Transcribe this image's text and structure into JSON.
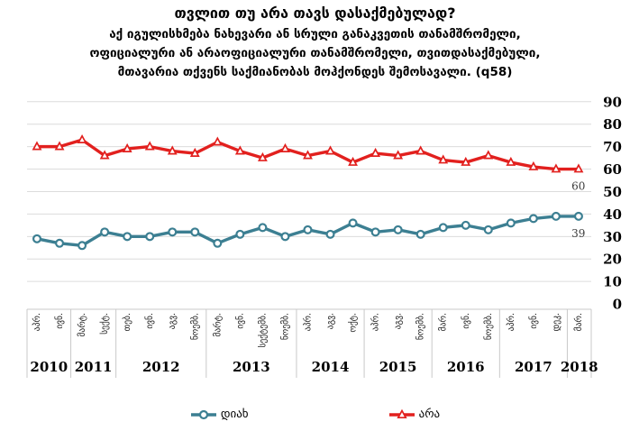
{
  "title": {
    "line1": "თვლით თუ არა თავს დასაქმებულად?",
    "line2": "აქ იგულისხმება ნახევარი ან სრული განაკვეთის თანამშრომელი,",
    "line3": "ოფიციალური ან არაოფიციალური თანამშრომელი, თვითდასაქმებული,",
    "line4": "მთავარია თქვენს საქმიანობას მოჰქონდეს შემოსავალი. (q58)"
  },
  "chart_data": {
    "type": "line",
    "categories": [
      "აპრ.",
      "ივნ.",
      "მარტ.",
      "სექტ.",
      "თებ.",
      "ივნ.",
      "აგვ.",
      "ნოემბ.",
      "მარტ.",
      "ივნ.",
      "სექტემბ.",
      "ნოემბ.",
      "აპრ.",
      "აგვ.",
      "ოქტ.",
      "აპრ.",
      "აგვ.",
      "ნოემბ.",
      "მარ.",
      "ივნ.",
      "ნოემბ.",
      "აპრ.",
      "ივნ.",
      "დეკ.",
      "მარ."
    ],
    "year_groups": [
      {
        "year": "2010",
        "count": 2
      },
      {
        "year": "2011",
        "count": 2
      },
      {
        "year": "2012",
        "count": 4
      },
      {
        "year": "2013",
        "count": 4
      },
      {
        "year": "2014",
        "count": 3
      },
      {
        "year": "2015",
        "count": 3
      },
      {
        "year": "2016",
        "count": 3
      },
      {
        "year": "2017",
        "count": 3
      },
      {
        "year": "2018",
        "count": 1
      }
    ],
    "series": [
      {
        "id": "yes",
        "name": "დიახ",
        "color": "#3C7F92",
        "marker": "circle",
        "values": [
          29,
          27,
          26,
          32,
          30,
          30,
          32,
          32,
          27,
          31,
          34,
          30,
          33,
          31,
          36,
          32,
          33,
          31,
          34,
          35,
          33,
          36,
          38,
          39,
          39
        ],
        "end_label": "39"
      },
      {
        "id": "no",
        "name": "არა",
        "color": "#E2201E",
        "marker": "triangle",
        "values": [
          70,
          70,
          73,
          66,
          69,
          70,
          68,
          67,
          72,
          68,
          65,
          69,
          66,
          68,
          63,
          67,
          66,
          68,
          64,
          63,
          66,
          63,
          61,
          60,
          60
        ],
        "end_label": "60"
      }
    ],
    "ylim": [
      0,
      90
    ],
    "ytick_step": 10,
    "grid": true,
    "grid_color": "#DCDCDC",
    "band_border_color": "#C9C9C9",
    "data_label_color": "#3d3d3d",
    "background": "#FFFFFF",
    "yaxis_side": "right",
    "legend_position": "bottom"
  }
}
